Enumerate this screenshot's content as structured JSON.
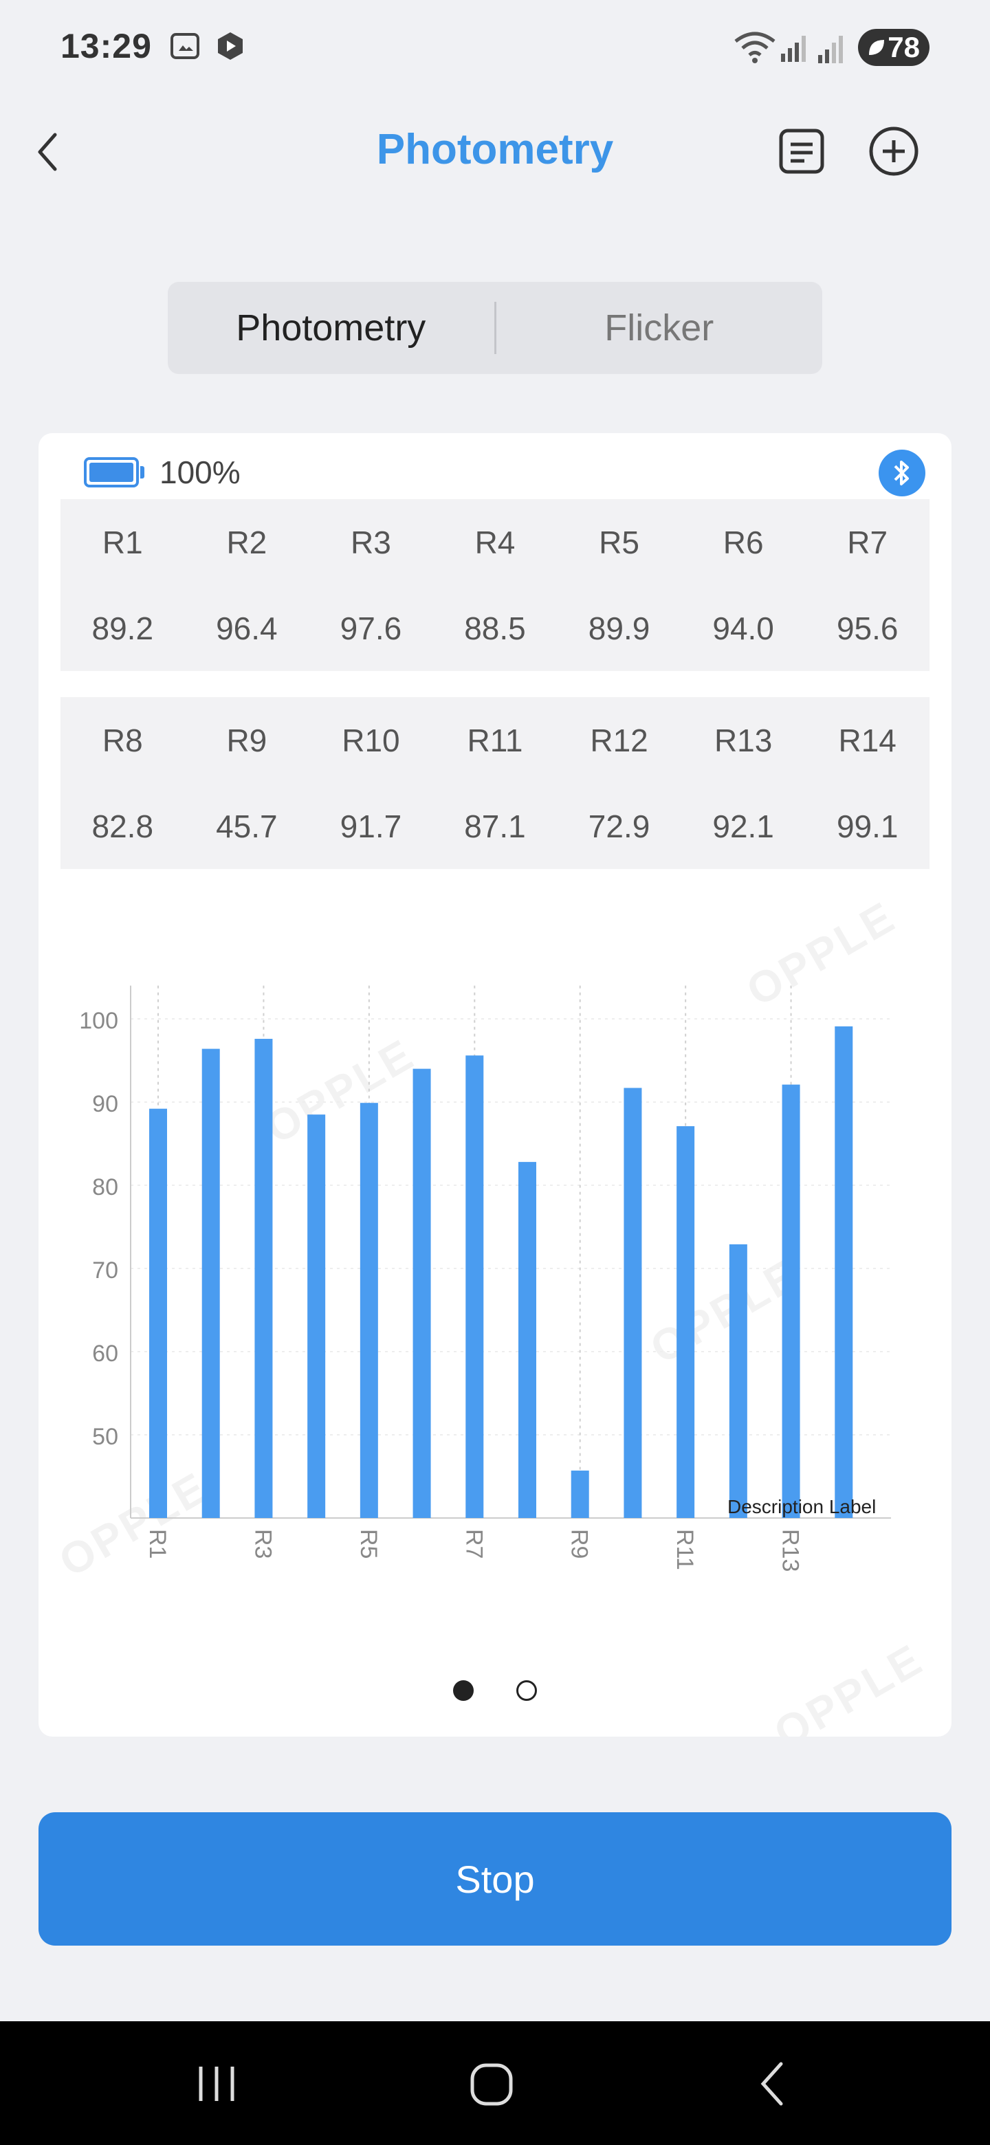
{
  "status_bar": {
    "time": "13:29",
    "battery_level": "78"
  },
  "header": {
    "title": "Photometry",
    "icons": [
      "back-arrow-icon",
      "report-list-icon",
      "add-circle-icon"
    ]
  },
  "tabs": [
    {
      "label": "Photometry",
      "active": true
    },
    {
      "label": "Flicker",
      "active": false
    }
  ],
  "device": {
    "battery_percent": "100%"
  },
  "r_table_1": {
    "headers": [
      "R1",
      "R2",
      "R3",
      "R4",
      "R5",
      "R6",
      "R7"
    ],
    "values": [
      "89.2",
      "96.4",
      "97.6",
      "88.5",
      "89.9",
      "94.0",
      "95.6"
    ]
  },
  "r_table_2": {
    "headers": [
      "R8",
      "R9",
      "R10",
      "R11",
      "R12",
      "R13",
      "R14"
    ],
    "values": [
      "82.8",
      "45.7",
      "91.7",
      "87.1",
      "72.9",
      "92.1",
      "99.1"
    ]
  },
  "chart_data": {
    "type": "bar",
    "categories": [
      "R1",
      "R2",
      "R3",
      "R4",
      "R5",
      "R6",
      "R7",
      "R8",
      "R9",
      "R10",
      "R11",
      "R12",
      "R13",
      "R14"
    ],
    "values": [
      89.2,
      96.4,
      97.6,
      88.5,
      89.9,
      94.0,
      95.6,
      82.8,
      45.7,
      91.7,
      87.1,
      72.9,
      92.1,
      99.1
    ],
    "x_tick_labels": [
      "R1",
      "R3",
      "R5",
      "R7",
      "R9",
      "R11",
      "R13"
    ],
    "y_ticks": [
      50,
      60,
      70,
      80,
      90,
      100
    ],
    "ylim": [
      40,
      104
    ],
    "description_label": "Description Label",
    "bar_color": "#4a9cf0",
    "grid": true
  },
  "pager": {
    "pages": 2,
    "current": 0
  },
  "actions": {
    "stop_label": "Stop"
  },
  "watermark_text": "OPPLE",
  "colors": {
    "accent": "#3d95e8",
    "button": "#2f86e1",
    "background": "#f0f1f4"
  }
}
